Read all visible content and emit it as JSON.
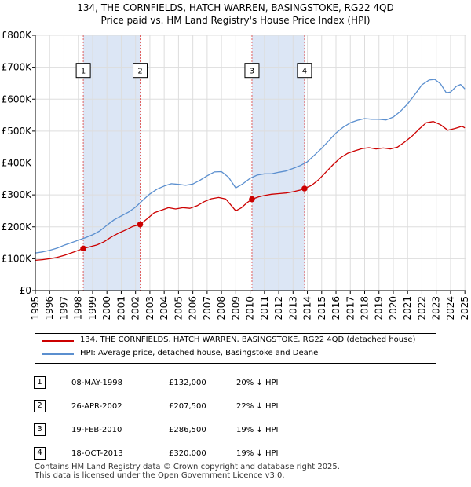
{
  "chart_data": {
    "type": "line",
    "title_line1": "134, THE CORNFIELDS, HATCH WARREN, BASINGSTOKE, RG22 4QD",
    "title_line2": "Price paid vs. HM Land Registry's House Price Index (HPI)",
    "x_range": [
      1995,
      2025.1
    ],
    "ylim": [
      0,
      800000
    ],
    "y_ticks": [
      {
        "value": 0,
        "label": "£0"
      },
      {
        "value": 100000,
        "label": "£100K"
      },
      {
        "value": 200000,
        "label": "£200K"
      },
      {
        "value": 300000,
        "label": "£300K"
      },
      {
        "value": 400000,
        "label": "£400K"
      },
      {
        "value": 500000,
        "label": "£500K"
      },
      {
        "value": 600000,
        "label": "£600K"
      },
      {
        "value": 700000,
        "label": "£700K"
      },
      {
        "value": 800000,
        "label": "£800K"
      }
    ],
    "x_ticks": [
      "1995",
      "1996",
      "1997",
      "1998",
      "1999",
      "2000",
      "2001",
      "2002",
      "2003",
      "2004",
      "2005",
      "2006",
      "2007",
      "2008",
      "2009",
      "2010",
      "2011",
      "2012",
      "2013",
      "2014",
      "2015",
      "2016",
      "2017",
      "2018",
      "2019",
      "2020",
      "2021",
      "2022",
      "2023",
      "2024",
      "2025"
    ],
    "grid": true,
    "colors": {
      "property": "#cc0000",
      "hpi": "#5b8fcf",
      "shade": "#dce6f5",
      "vline": "#e06060",
      "grid": "#dddddd"
    },
    "series": [
      {
        "name": "134, THE CORNFIELDS, HATCH WARREN, BASINGSTOKE, RG22 4QD (detached house)",
        "color": "#cc0000",
        "points": [
          [
            1995.0,
            95000
          ],
          [
            1995.5,
            97000
          ],
          [
            1996.0,
            100000
          ],
          [
            1996.5,
            104000
          ],
          [
            1997.0,
            110000
          ],
          [
            1997.5,
            118000
          ],
          [
            1998.0,
            126000
          ],
          [
            1998.35,
            132000
          ],
          [
            1998.8,
            137000
          ],
          [
            1999.3,
            143000
          ],
          [
            1999.8,
            153000
          ],
          [
            2000.3,
            168000
          ],
          [
            2000.8,
            180000
          ],
          [
            2001.3,
            190000
          ],
          [
            2001.8,
            201000
          ],
          [
            2002.32,
            207500
          ],
          [
            2002.8,
            225000
          ],
          [
            2003.3,
            244000
          ],
          [
            2003.8,
            252000
          ],
          [
            2004.3,
            260000
          ],
          [
            2004.8,
            256000
          ],
          [
            2005.3,
            260000
          ],
          [
            2005.8,
            258000
          ],
          [
            2006.3,
            266000
          ],
          [
            2006.8,
            279000
          ],
          [
            2007.3,
            288000
          ],
          [
            2007.8,
            292000
          ],
          [
            2008.3,
            287000
          ],
          [
            2008.7,
            266000
          ],
          [
            2009.0,
            250000
          ],
          [
            2009.4,
            260000
          ],
          [
            2009.8,
            276000
          ],
          [
            2010.13,
            286500
          ],
          [
            2010.6,
            294000
          ],
          [
            2011.0,
            298000
          ],
          [
            2011.5,
            302000
          ],
          [
            2012.0,
            304000
          ],
          [
            2012.5,
            306000
          ],
          [
            2013.0,
            310000
          ],
          [
            2013.5,
            315000
          ],
          [
            2013.8,
            320000
          ],
          [
            2014.3,
            330000
          ],
          [
            2014.8,
            348000
          ],
          [
            2015.3,
            372000
          ],
          [
            2015.8,
            395000
          ],
          [
            2016.3,
            416000
          ],
          [
            2016.8,
            430000
          ],
          [
            2017.3,
            438000
          ],
          [
            2017.8,
            445000
          ],
          [
            2018.3,
            448000
          ],
          [
            2018.8,
            444000
          ],
          [
            2019.3,
            447000
          ],
          [
            2019.8,
            444000
          ],
          [
            2020.3,
            450000
          ],
          [
            2020.8,
            466000
          ],
          [
            2021.3,
            484000
          ],
          [
            2021.8,
            506000
          ],
          [
            2022.3,
            526000
          ],
          [
            2022.8,
            530000
          ],
          [
            2023.3,
            520000
          ],
          [
            2023.8,
            503000
          ],
          [
            2024.3,
            508000
          ],
          [
            2024.8,
            515000
          ],
          [
            2025.0,
            510000
          ]
        ]
      },
      {
        "name": "HPI: Average price, detached house, Basingstoke and Deane",
        "color": "#5b8fcf",
        "points": [
          [
            1995.0,
            118000
          ],
          [
            1995.5,
            121000
          ],
          [
            1996.0,
            126000
          ],
          [
            1996.5,
            133000
          ],
          [
            1997.0,
            142000
          ],
          [
            1997.5,
            150000
          ],
          [
            1998.0,
            158000
          ],
          [
            1998.5,
            166000
          ],
          [
            1999.0,
            175000
          ],
          [
            1999.5,
            187000
          ],
          [
            2000.0,
            205000
          ],
          [
            2000.5,
            222000
          ],
          [
            2001.0,
            234000
          ],
          [
            2001.5,
            246000
          ],
          [
            2002.0,
            262000
          ],
          [
            2002.5,
            283000
          ],
          [
            2003.0,
            303000
          ],
          [
            2003.5,
            318000
          ],
          [
            2004.0,
            328000
          ],
          [
            2004.5,
            335000
          ],
          [
            2005.0,
            333000
          ],
          [
            2005.5,
            330000
          ],
          [
            2006.0,
            334000
          ],
          [
            2006.5,
            346000
          ],
          [
            2007.0,
            360000
          ],
          [
            2007.5,
            372000
          ],
          [
            2008.0,
            373000
          ],
          [
            2008.5,
            355000
          ],
          [
            2009.0,
            322000
          ],
          [
            2009.5,
            335000
          ],
          [
            2010.0,
            352000
          ],
          [
            2010.5,
            362000
          ],
          [
            2011.0,
            366000
          ],
          [
            2011.5,
            366000
          ],
          [
            2012.0,
            371000
          ],
          [
            2012.5,
            375000
          ],
          [
            2013.0,
            383000
          ],
          [
            2013.5,
            392000
          ],
          [
            2014.0,
            404000
          ],
          [
            2014.5,
            425000
          ],
          [
            2015.0,
            446000
          ],
          [
            2015.5,
            470000
          ],
          [
            2016.0,
            494000
          ],
          [
            2016.5,
            512000
          ],
          [
            2017.0,
            526000
          ],
          [
            2017.5,
            534000
          ],
          [
            2018.0,
            539000
          ],
          [
            2018.5,
            537000
          ],
          [
            2019.0,
            537000
          ],
          [
            2019.5,
            535000
          ],
          [
            2020.0,
            544000
          ],
          [
            2020.5,
            562000
          ],
          [
            2021.0,
            585000
          ],
          [
            2021.5,
            614000
          ],
          [
            2022.0,
            645000
          ],
          [
            2022.5,
            660000
          ],
          [
            2022.9,
            662000
          ],
          [
            2023.3,
            648000
          ],
          [
            2023.7,
            620000
          ],
          [
            2024.0,
            622000
          ],
          [
            2024.4,
            640000
          ],
          [
            2024.7,
            646000
          ],
          [
            2025.0,
            632000
          ]
        ]
      }
    ],
    "sales": [
      {
        "label": "1",
        "x": 1998.35,
        "price": 132000
      },
      {
        "label": "2",
        "x": 2002.32,
        "price": 207500
      },
      {
        "label": "3",
        "x": 2010.13,
        "price": 286500
      },
      {
        "label": "4",
        "x": 2013.8,
        "price": 320000
      }
    ],
    "shaded_ranges": [
      [
        1998.35,
        2002.32
      ],
      [
        2010.13,
        2013.8
      ]
    ],
    "marker_label_value": 690000
  },
  "legend": {
    "property_label": "134, THE CORNFIELDS, HATCH WARREN, BASINGSTOKE, RG22 4QD (detached house)",
    "hpi_label": "HPI: Average price, detached house, Basingstoke and Deane"
  },
  "transactions": [
    {
      "num": "1",
      "date": "08-MAY-1998",
      "price": "£132,000",
      "hpi": "20% ↓ HPI"
    },
    {
      "num": "2",
      "date": "26-APR-2002",
      "price": "£207,500",
      "hpi": "22% ↓ HPI"
    },
    {
      "num": "3",
      "date": "19-FEB-2010",
      "price": "£286,500",
      "hpi": "19% ↓ HPI"
    },
    {
      "num": "4",
      "date": "18-OCT-2013",
      "price": "£320,000",
      "hpi": "19% ↓ HPI"
    }
  ],
  "footer": {
    "line1": "Contains HM Land Registry data © Crown copyright and database right 2025.",
    "line2": "This data is licensed under the Open Government Licence v3.0."
  }
}
